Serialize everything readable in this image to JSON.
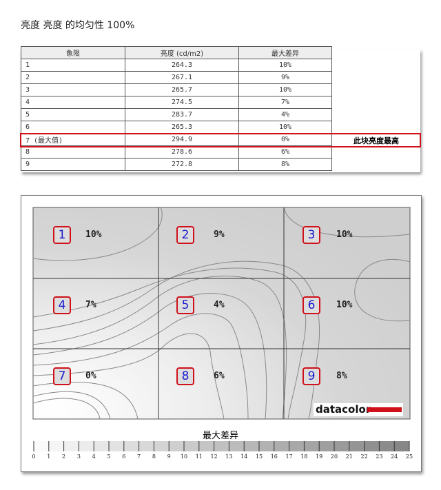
{
  "title": "亮度 亮度 的均匀性 100%",
  "table": {
    "headers": [
      "象限",
      "亮度 (cd/m2)",
      "最大差异"
    ],
    "rows": [
      [
        "1",
        "264.3",
        "10%"
      ],
      [
        "2",
        "267.1",
        "9%"
      ],
      [
        "3",
        "265.7",
        "10%"
      ],
      [
        "4",
        "274.5",
        "7%"
      ],
      [
        "5",
        "283.7",
        "4%"
      ],
      [
        "6",
        "265.3",
        "10%"
      ],
      [
        "7 (最大值)",
        "294.9",
        "0%"
      ],
      [
        "8",
        "278.6",
        "6%"
      ],
      [
        "9",
        "272.8",
        "8%"
      ]
    ],
    "highlight_note": "此块亮度最高"
  },
  "chart_data": {
    "type": "heatmap",
    "grid": [
      3,
      3
    ],
    "cells": [
      {
        "q": "1",
        "value": "10%"
      },
      {
        "q": "2",
        "value": "9%"
      },
      {
        "q": "3",
        "value": "10%"
      },
      {
        "q": "4",
        "value": "7%"
      },
      {
        "q": "5",
        "value": "4%"
      },
      {
        "q": "6",
        "value": "10%"
      },
      {
        "q": "7",
        "value": "0%"
      },
      {
        "q": "8",
        "value": "6%"
      },
      {
        "q": "9",
        "value": "8%"
      }
    ],
    "legend_title": "最大差异",
    "legend_ticks": [
      "0",
      "1",
      "2",
      "3",
      "4",
      "5",
      "6",
      "7",
      "8",
      "9",
      "10",
      "11",
      "12",
      "13",
      "14",
      "15",
      "16",
      "17",
      "18",
      "19",
      "20",
      "21",
      "22",
      "23",
      "24",
      "25"
    ],
    "colors": {
      "highlight": "#d0101a",
      "label": "#1a1ad0"
    }
  },
  "logo": "datacolor"
}
